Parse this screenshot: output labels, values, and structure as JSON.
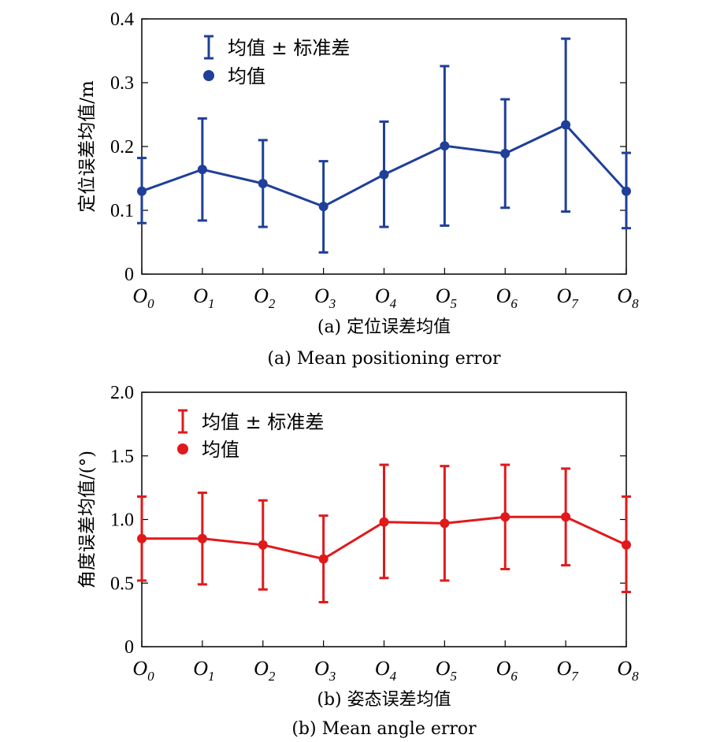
{
  "chart_data": [
    {
      "type": "line",
      "color": "#1f3f99",
      "categories": [
        "O0",
        "O1",
        "O2",
        "O3",
        "O4",
        "O5",
        "O6",
        "O7",
        "O8"
      ],
      "category_base": [
        "O",
        "O",
        "O",
        "O",
        "O",
        "O",
        "O",
        "O",
        "O"
      ],
      "category_sub": [
        "0",
        "1",
        "2",
        "3",
        "4",
        "5",
        "6",
        "7",
        "8"
      ],
      "series": [
        {
          "name": "均值",
          "values": [
            0.13,
            0.164,
            0.142,
            0.106,
            0.156,
            0.201,
            0.189,
            0.234,
            0.13
          ],
          "err_low": [
            0.08,
            0.084,
            0.074,
            0.034,
            0.074,
            0.076,
            0.104,
            0.098,
            0.072
          ],
          "err_high": [
            0.182,
            0.244,
            0.21,
            0.177,
            0.239,
            0.326,
            0.274,
            0.369,
            0.19
          ]
        }
      ],
      "legend": {
        "errorbar_label": "均值 ± 标准差",
        "mean_label": "均值",
        "position": "top-left"
      },
      "ylabel": "定位误差均值/m",
      "ylim": [
        0,
        0.4
      ],
      "yticks": [
        0,
        0.1,
        0.2,
        0.3,
        0.4
      ],
      "ytick_labels": [
        "0",
        "0.1",
        "0.2",
        "0.3",
        "0.4"
      ],
      "caption_cn": "(a) 定位误差均值",
      "caption_en": "(a) Mean positioning error",
      "grid": false
    },
    {
      "type": "line",
      "color": "#e0191b",
      "categories": [
        "O0",
        "O1",
        "O2",
        "O3",
        "O4",
        "O5",
        "O6",
        "O7",
        "O8"
      ],
      "category_base": [
        "O",
        "O",
        "O",
        "O",
        "O",
        "O",
        "O",
        "O",
        "O"
      ],
      "category_sub": [
        "0",
        "1",
        "2",
        "3",
        "4",
        "5",
        "6",
        "7",
        "8"
      ],
      "series": [
        {
          "name": "均值",
          "values": [
            0.85,
            0.85,
            0.8,
            0.69,
            0.98,
            0.97,
            1.02,
            1.02,
            0.8
          ],
          "err_low": [
            0.52,
            0.49,
            0.45,
            0.35,
            0.54,
            0.52,
            0.61,
            0.64,
            0.43
          ],
          "err_high": [
            1.18,
            1.21,
            1.15,
            1.03,
            1.43,
            1.42,
            1.43,
            1.4,
            1.18
          ]
        }
      ],
      "legend": {
        "errorbar_label": "均值 ± 标准差",
        "mean_label": "均值",
        "position": "top-left"
      },
      "ylabel": "角度误差均值/(°)",
      "ylim": [
        0,
        2.0
      ],
      "yticks": [
        0,
        0.5,
        1.0,
        1.5,
        2.0
      ],
      "ytick_labels": [
        "0",
        "0.5",
        "1.0",
        "1.5",
        "2.0"
      ],
      "caption_cn": "(b) 姿态误差均值",
      "caption_en": "(b) Mean angle error",
      "grid": false
    }
  ]
}
